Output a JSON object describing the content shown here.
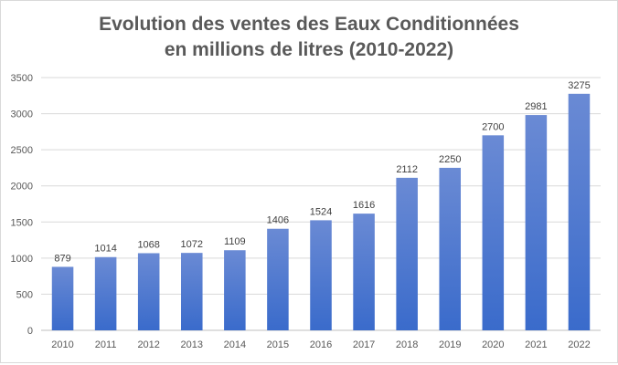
{
  "chart_data": {
    "type": "bar",
    "title_lines": [
      "Evolution des ventes des Eaux Conditionnées",
      "en millions de litres (2010-2022)"
    ],
    "categories": [
      "2010",
      "2011",
      "2012",
      "2013",
      "2014",
      "2015",
      "2016",
      "2017",
      "2018",
      "2019",
      "2020",
      "2021",
      "2022"
    ],
    "values": [
      879,
      1014,
      1068,
      1072,
      1109,
      1406,
      1524,
      1616,
      2112,
      2250,
      2700,
      2981,
      3275
    ],
    "ylim": [
      0,
      3500
    ],
    "yticks": [
      0,
      500,
      1000,
      1500,
      2000,
      2500,
      3000,
      3500
    ],
    "grid": true,
    "legend": "none",
    "bar_color_top": "#6a8ad4",
    "bar_color_bottom": "#3a6bcb",
    "data_labels": true
  }
}
